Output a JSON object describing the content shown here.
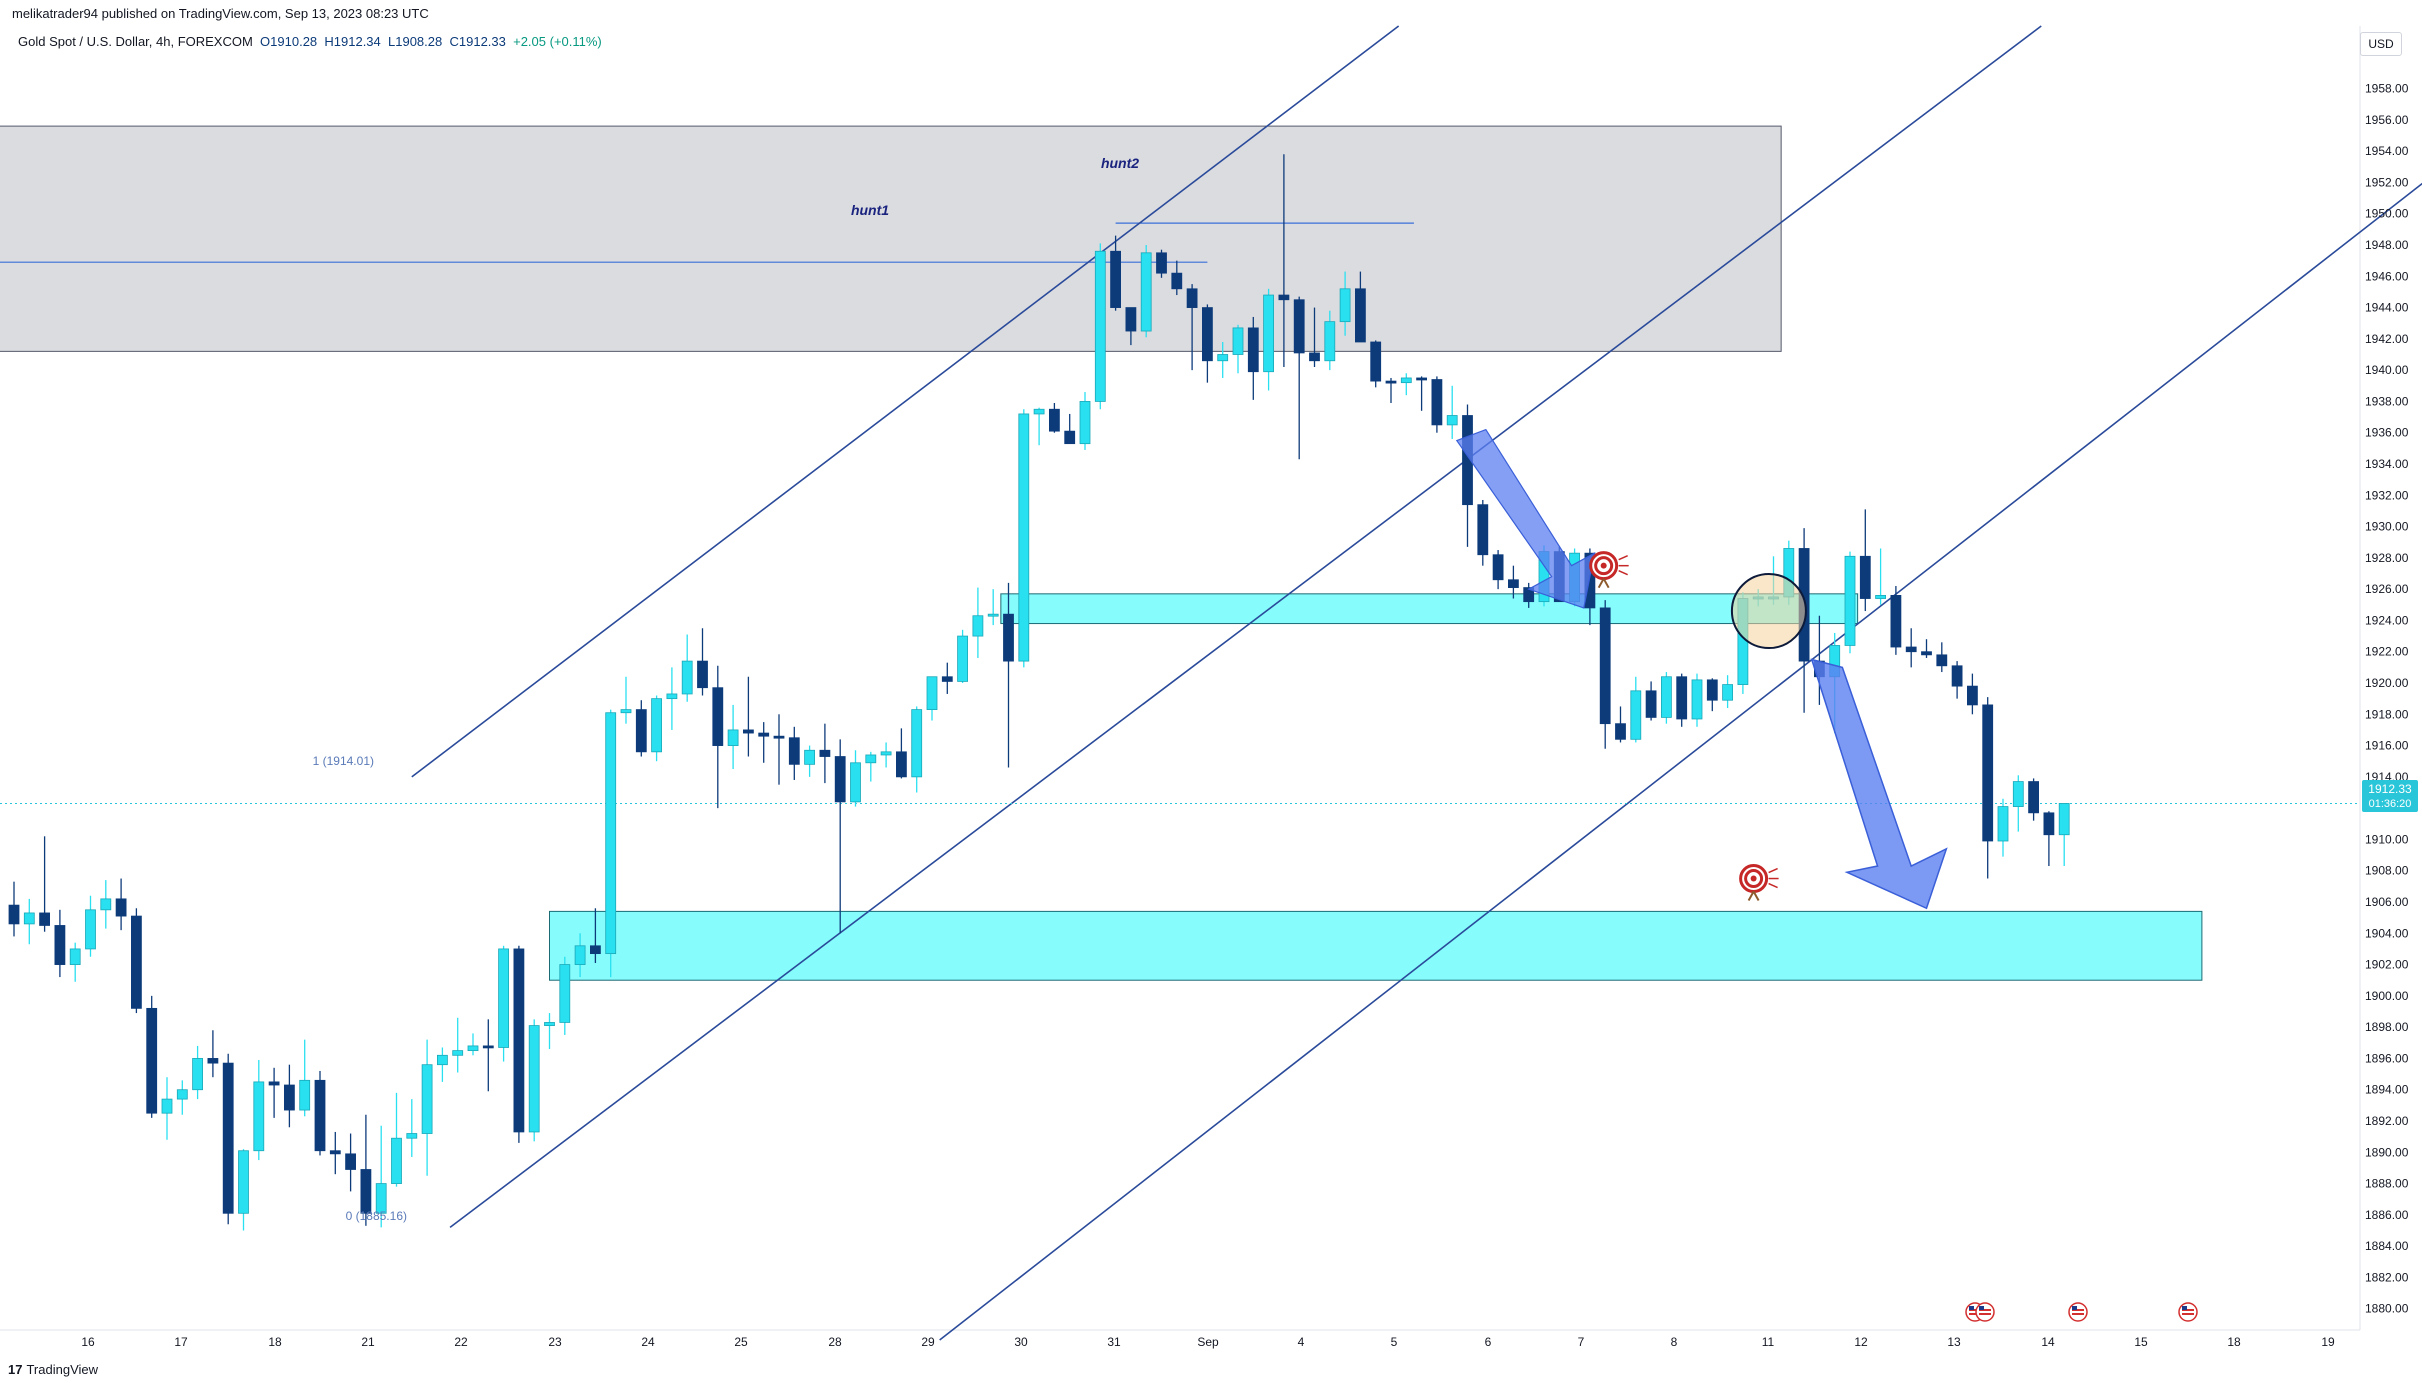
{
  "header": {
    "publish_line": "melikatrader94 published on TradingView.com, Sep 13, 2023 08:23 UTC",
    "symbol_name": "Gold Spot / U.S. Dollar, 4h, FOREXCOM",
    "open": "O1910.28",
    "high": "H1912.34",
    "low": "L1908.28",
    "close": "C1912.33",
    "change": "+2.05 (+0.11%)"
  },
  "currency_button": "USD",
  "footer": {
    "brand": "TradingView",
    "brand_mark": "17"
  },
  "price_tag": {
    "price": "1912.33",
    "countdown": "01:36:20"
  },
  "colors": {
    "bull": "#29e0f0",
    "bear": "#0d3b7a",
    "zone": "#7ffcfc",
    "supply_zone": "#d7d8dd",
    "trendline": "#2a4a9a",
    "arrow": "#5b7ff0"
  },
  "annotations": {
    "hunt1": "hunt1",
    "hunt2": "hunt2",
    "fib_top": "1 (1914.01)",
    "fib_bottom": "0 (1885.16)"
  },
  "chart_data": {
    "type": "candlestick",
    "title": "Gold Spot / U.S. Dollar, 4h, FOREXCOM",
    "ylim": [
      1878,
      1962
    ],
    "y_ticks": [
      "1958.00",
      "1956.00",
      "1954.00",
      "1952.00",
      "1950.00",
      "1948.00",
      "1946.00",
      "1944.00",
      "1942.00",
      "1940.00",
      "1938.00",
      "1936.00",
      "1934.00",
      "1932.00",
      "1930.00",
      "1928.00",
      "1926.00",
      "1924.00",
      "1922.00",
      "1920.00",
      "1918.00",
      "1916.00",
      "1914.00",
      "1912.00",
      "1910.00",
      "1908.00",
      "1906.00",
      "1904.00",
      "1902.00",
      "1900.00",
      "1898.00",
      "1896.00",
      "1894.00",
      "1892.00",
      "1890.00",
      "1888.00",
      "1886.00",
      "1884.00",
      "1882.00",
      "1880.00"
    ],
    "x_ticks": [
      "16",
      "17",
      "18",
      "21",
      "22",
      "23",
      "24",
      "25",
      "28",
      "29",
      "30",
      "31",
      "Sep",
      "4",
      "5",
      "6",
      "7",
      "8",
      "11",
      "12",
      "13",
      "14",
      "15",
      "18",
      "19"
    ],
    "candles": [
      {
        "o": 1905.8,
        "h": 1907.3,
        "l": 1903.8,
        "c": 1904.6
      },
      {
        "o": 1904.6,
        "h": 1906.2,
        "l": 1903.3,
        "c": 1905.3
      },
      {
        "o": 1905.3,
        "h": 1910.2,
        "l": 1904.1,
        "c": 1904.5
      },
      {
        "o": 1904.5,
        "h": 1905.5,
        "l": 1901.2,
        "c": 1902.0
      },
      {
        "o": 1902.0,
        "h": 1903.4,
        "l": 1900.9,
        "c": 1903.0
      },
      {
        "o": 1903.0,
        "h": 1906.4,
        "l": 1902.5,
        "c": 1905.5
      },
      {
        "o": 1905.5,
        "h": 1907.4,
        "l": 1904.3,
        "c": 1906.2
      },
      {
        "o": 1906.2,
        "h": 1907.5,
        "l": 1904.2,
        "c": 1905.1
      },
      {
        "o": 1905.1,
        "h": 1905.6,
        "l": 1898.9,
        "c": 1899.2
      },
      {
        "o": 1899.2,
        "h": 1900.0,
        "l": 1892.2,
        "c": 1892.5
      },
      {
        "o": 1892.5,
        "h": 1894.8,
        "l": 1890.8,
        "c": 1893.4
      },
      {
        "o": 1893.4,
        "h": 1894.6,
        "l": 1892.4,
        "c": 1894.0
      },
      {
        "o": 1894.0,
        "h": 1896.8,
        "l": 1893.4,
        "c": 1896.0
      },
      {
        "o": 1896.0,
        "h": 1897.8,
        "l": 1894.8,
        "c": 1895.7
      },
      {
        "o": 1895.7,
        "h": 1896.3,
        "l": 1885.4,
        "c": 1886.1
      },
      {
        "o": 1886.1,
        "h": 1890.2,
        "l": 1885.0,
        "c": 1890.1
      },
      {
        "o": 1890.1,
        "h": 1895.9,
        "l": 1889.5,
        "c": 1894.5
      },
      {
        "o": 1894.5,
        "h": 1895.4,
        "l": 1892.2,
        "c": 1894.3
      },
      {
        "o": 1894.3,
        "h": 1895.6,
        "l": 1891.6,
        "c": 1892.7
      },
      {
        "o": 1892.7,
        "h": 1897.2,
        "l": 1892.3,
        "c": 1894.6
      },
      {
        "o": 1894.6,
        "h": 1895.2,
        "l": 1889.8,
        "c": 1890.1
      },
      {
        "o": 1890.1,
        "h": 1891.3,
        "l": 1888.6,
        "c": 1889.9
      },
      {
        "o": 1889.9,
        "h": 1891.2,
        "l": 1887.5,
        "c": 1888.9
      },
      {
        "o": 1888.9,
        "h": 1892.4,
        "l": 1885.3,
        "c": 1886.1
      },
      {
        "o": 1886.1,
        "h": 1891.7,
        "l": 1885.2,
        "c": 1888.0
      },
      {
        "o": 1888.0,
        "h": 1893.8,
        "l": 1887.8,
        "c": 1890.9
      },
      {
        "o": 1890.9,
        "h": 1893.4,
        "l": 1889.7,
        "c": 1891.2
      },
      {
        "o": 1891.2,
        "h": 1897.2,
        "l": 1888.5,
        "c": 1895.6
      },
      {
        "o": 1895.6,
        "h": 1896.7,
        "l": 1894.5,
        "c": 1896.2
      },
      {
        "o": 1896.2,
        "h": 1898.6,
        "l": 1895.1,
        "c": 1896.5
      },
      {
        "o": 1896.5,
        "h": 1897.6,
        "l": 1896.2,
        "c": 1896.8
      },
      {
        "o": 1896.8,
        "h": 1898.5,
        "l": 1893.9,
        "c": 1896.7
      },
      {
        "o": 1896.7,
        "h": 1903.2,
        "l": 1895.8,
        "c": 1903.0
      },
      {
        "o": 1903.0,
        "h": 1903.2,
        "l": 1890.6,
        "c": 1891.3
      },
      {
        "o": 1891.3,
        "h": 1898.5,
        "l": 1890.7,
        "c": 1898.1
      },
      {
        "o": 1898.1,
        "h": 1898.9,
        "l": 1896.6,
        "c": 1898.3
      },
      {
        "o": 1898.3,
        "h": 1902.5,
        "l": 1897.5,
        "c": 1902.0
      },
      {
        "o": 1902.0,
        "h": 1904.0,
        "l": 1901.2,
        "c": 1903.2
      },
      {
        "o": 1903.2,
        "h": 1905.6,
        "l": 1902.1,
        "c": 1902.7
      },
      {
        "o": 1902.7,
        "h": 1918.3,
        "l": 1901.2,
        "c": 1918.1
      },
      {
        "o": 1918.1,
        "h": 1920.4,
        "l": 1917.4,
        "c": 1918.3
      },
      {
        "o": 1918.3,
        "h": 1918.9,
        "l": 1915.3,
        "c": 1915.6
      },
      {
        "o": 1915.6,
        "h": 1919.2,
        "l": 1915.0,
        "c": 1919.0
      },
      {
        "o": 1919.0,
        "h": 1921.0,
        "l": 1917.0,
        "c": 1919.3
      },
      {
        "o": 1919.3,
        "h": 1923.1,
        "l": 1918.8,
        "c": 1921.4
      },
      {
        "o": 1921.4,
        "h": 1923.5,
        "l": 1919.2,
        "c": 1919.7
      },
      {
        "o": 1919.7,
        "h": 1921.1,
        "l": 1912.0,
        "c": 1916.0
      },
      {
        "o": 1916.0,
        "h": 1918.6,
        "l": 1914.5,
        "c": 1917.0
      },
      {
        "o": 1917.0,
        "h": 1920.4,
        "l": 1915.3,
        "c": 1916.8
      },
      {
        "o": 1916.8,
        "h": 1917.5,
        "l": 1914.9,
        "c": 1916.6
      },
      {
        "o": 1916.6,
        "h": 1918.0,
        "l": 1913.5,
        "c": 1916.5
      },
      {
        "o": 1916.5,
        "h": 1917.2,
        "l": 1913.8,
        "c": 1914.8
      },
      {
        "o": 1914.8,
        "h": 1916.0,
        "l": 1914.0,
        "c": 1915.7
      },
      {
        "o": 1915.7,
        "h": 1917.4,
        "l": 1913.6,
        "c": 1915.3
      },
      {
        "o": 1915.3,
        "h": 1916.4,
        "l": 1904.0,
        "c": 1912.4
      },
      {
        "o": 1912.4,
        "h": 1915.7,
        "l": 1912.1,
        "c": 1914.9
      },
      {
        "o": 1914.9,
        "h": 1915.6,
        "l": 1913.7,
        "c": 1915.4
      },
      {
        "o": 1915.4,
        "h": 1916.2,
        "l": 1914.6,
        "c": 1915.6
      },
      {
        "o": 1915.6,
        "h": 1917.1,
        "l": 1913.9,
        "c": 1914.0
      },
      {
        "o": 1914.0,
        "h": 1918.5,
        "l": 1913.0,
        "c": 1918.3
      },
      {
        "o": 1918.3,
        "h": 1920.1,
        "l": 1917.6,
        "c": 1920.4
      },
      {
        "o": 1920.4,
        "h": 1921.3,
        "l": 1919.3,
        "c": 1920.1
      },
      {
        "o": 1920.1,
        "h": 1923.4,
        "l": 1920.0,
        "c": 1923.0
      },
      {
        "o": 1923.0,
        "h": 1926.1,
        "l": 1921.6,
        "c": 1924.3
      },
      {
        "o": 1924.3,
        "h": 1926.0,
        "l": 1923.7,
        "c": 1924.4
      },
      {
        "o": 1924.4,
        "h": 1926.4,
        "l": 1914.6,
        "c": 1921.4
      },
      {
        "o": 1921.4,
        "h": 1937.5,
        "l": 1921.0,
        "c": 1937.2
      },
      {
        "o": 1937.2,
        "h": 1937.6,
        "l": 1935.2,
        "c": 1937.5
      },
      {
        "o": 1937.5,
        "h": 1937.9,
        "l": 1936.0,
        "c": 1936.1
      },
      {
        "o": 1936.1,
        "h": 1937.2,
        "l": 1935.6,
        "c": 1935.3
      },
      {
        "o": 1935.3,
        "h": 1938.6,
        "l": 1934.9,
        "c": 1938.0
      },
      {
        "o": 1938.0,
        "h": 1948.1,
        "l": 1937.5,
        "c": 1947.6
      },
      {
        "o": 1947.6,
        "h": 1948.6,
        "l": 1943.8,
        "c": 1944.0
      },
      {
        "o": 1944.0,
        "h": 1943.2,
        "l": 1941.6,
        "c": 1942.5
      },
      {
        "o": 1942.5,
        "h": 1948.0,
        "l": 1942.1,
        "c": 1947.5
      },
      {
        "o": 1947.5,
        "h": 1947.7,
        "l": 1945.9,
        "c": 1946.2
      },
      {
        "o": 1946.2,
        "h": 1947.0,
        "l": 1944.8,
        "c": 1945.2
      },
      {
        "o": 1945.2,
        "h": 1945.5,
        "l": 1940.0,
        "c": 1944.0
      },
      {
        "o": 1944.0,
        "h": 1944.2,
        "l": 1939.2,
        "c": 1940.6
      },
      {
        "o": 1940.6,
        "h": 1941.8,
        "l": 1939.5,
        "c": 1941.0
      },
      {
        "o": 1941.0,
        "h": 1942.9,
        "l": 1939.8,
        "c": 1942.7
      },
      {
        "o": 1942.7,
        "h": 1943.4,
        "l": 1938.1,
        "c": 1939.9
      },
      {
        "o": 1939.9,
        "h": 1945.2,
        "l": 1938.7,
        "c": 1944.8
      },
      {
        "o": 1944.8,
        "h": 1953.8,
        "l": 1940.2,
        "c": 1944.5
      },
      {
        "o": 1944.5,
        "h": 1944.7,
        "l": 1934.3,
        "c": 1941.1
      },
      {
        "o": 1941.1,
        "h": 1944.0,
        "l": 1940.2,
        "c": 1940.6
      },
      {
        "o": 1940.6,
        "h": 1943.8,
        "l": 1940.0,
        "c": 1943.1
      },
      {
        "o": 1943.1,
        "h": 1946.3,
        "l": 1942.2,
        "c": 1945.2
      },
      {
        "o": 1945.2,
        "h": 1946.3,
        "l": 1941.9,
        "c": 1941.8
      },
      {
        "o": 1941.8,
        "h": 1941.9,
        "l": 1938.9,
        "c": 1939.3
      },
      {
        "o": 1939.3,
        "h": 1939.5,
        "l": 1937.9,
        "c": 1939.2
      },
      {
        "o": 1939.2,
        "h": 1939.8,
        "l": 1938.4,
        "c": 1939.5
      },
      {
        "o": 1939.5,
        "h": 1939.6,
        "l": 1937.4,
        "c": 1939.4
      },
      {
        "o": 1939.4,
        "h": 1939.6,
        "l": 1936.0,
        "c": 1936.5
      },
      {
        "o": 1936.5,
        "h": 1939.0,
        "l": 1935.6,
        "c": 1937.1
      },
      {
        "o": 1937.1,
        "h": 1937.8,
        "l": 1928.7,
        "c": 1931.4
      },
      {
        "o": 1931.4,
        "h": 1931.7,
        "l": 1927.5,
        "c": 1928.2
      },
      {
        "o": 1928.2,
        "h": 1928.5,
        "l": 1926.0,
        "c": 1926.6
      },
      {
        "o": 1926.6,
        "h": 1927.5,
        "l": 1925.4,
        "c": 1926.1
      },
      {
        "o": 1926.1,
        "h": 1926.4,
        "l": 1924.8,
        "c": 1925.2
      },
      {
        "o": 1925.2,
        "h": 1928.8,
        "l": 1924.9,
        "c": 1928.4
      },
      {
        "o": 1928.4,
        "h": 1928.7,
        "l": 1925.4,
        "c": 1925.2
      },
      {
        "o": 1925.2,
        "h": 1928.6,
        "l": 1924.9,
        "c": 1928.3
      },
      {
        "o": 1928.3,
        "h": 1928.6,
        "l": 1923.7,
        "c": 1924.8
      },
      {
        "o": 1924.8,
        "h": 1925.3,
        "l": 1915.8,
        "c": 1917.4
      },
      {
        "o": 1917.4,
        "h": 1918.5,
        "l": 1916.2,
        "c": 1916.4
      },
      {
        "o": 1916.4,
        "h": 1920.4,
        "l": 1916.2,
        "c": 1919.5
      },
      {
        "o": 1919.5,
        "h": 1920.1,
        "l": 1917.6,
        "c": 1917.8
      },
      {
        "o": 1917.8,
        "h": 1920.7,
        "l": 1917.4,
        "c": 1920.4
      },
      {
        "o": 1920.4,
        "h": 1920.6,
        "l": 1917.2,
        "c": 1917.7
      },
      {
        "o": 1917.7,
        "h": 1920.6,
        "l": 1917.2,
        "c": 1920.2
      },
      {
        "o": 1920.2,
        "h": 1920.3,
        "l": 1918.2,
        "c": 1918.9
      },
      {
        "o": 1918.9,
        "h": 1920.5,
        "l": 1918.4,
        "c": 1919.9
      },
      {
        "o": 1919.9,
        "h": 1925.8,
        "l": 1919.3,
        "c": 1925.4
      },
      {
        "o": 1925.4,
        "h": 1926.0,
        "l": 1924.9,
        "c": 1925.5
      },
      {
        "o": 1925.5,
        "h": 1928.1,
        "l": 1925.0,
        "c": 1925.5
      },
      {
        "o": 1925.5,
        "h": 1929.1,
        "l": 1925.0,
        "c": 1928.6
      },
      {
        "o": 1928.6,
        "h": 1929.9,
        "l": 1918.1,
        "c": 1921.4
      },
      {
        "o": 1921.4,
        "h": 1924.3,
        "l": 1918.6,
        "c": 1920.4
      },
      {
        "o": 1920.4,
        "h": 1923.2,
        "l": 1916.8,
        "c": 1922.4
      },
      {
        "o": 1922.4,
        "h": 1928.4,
        "l": 1921.9,
        "c": 1928.1
      },
      {
        "o": 1928.1,
        "h": 1931.1,
        "l": 1924.6,
        "c": 1925.4
      },
      {
        "o": 1925.4,
        "h": 1928.6,
        "l": 1925.0,
        "c": 1925.6
      },
      {
        "o": 1925.6,
        "h": 1926.2,
        "l": 1921.8,
        "c": 1922.3
      },
      {
        "o": 1922.3,
        "h": 1923.5,
        "l": 1921.0,
        "c": 1922.0
      },
      {
        "o": 1922.0,
        "h": 1922.8,
        "l": 1921.6,
        "c": 1921.8
      },
      {
        "o": 1921.8,
        "h": 1922.6,
        "l": 1920.7,
        "c": 1921.1
      },
      {
        "o": 1921.1,
        "h": 1921.4,
        "l": 1919.0,
        "c": 1919.8
      },
      {
        "o": 1919.8,
        "h": 1920.6,
        "l": 1918.0,
        "c": 1918.6
      },
      {
        "o": 1918.6,
        "h": 1919.1,
        "l": 1907.5,
        "c": 1909.9
      },
      {
        "o": 1909.9,
        "h": 1912.6,
        "l": 1908.9,
        "c": 1912.1
      },
      {
        "o": 1912.1,
        "h": 1914.1,
        "l": 1910.5,
        "c": 1913.7
      },
      {
        "o": 1913.7,
        "h": 1913.9,
        "l": 1911.2,
        "c": 1911.7
      },
      {
        "o": 1911.7,
        "h": 1911.8,
        "l": 1908.3,
        "c": 1910.3
      },
      {
        "o": 1910.3,
        "h": 1912.3,
        "l": 1908.3,
        "c": 1912.3
      }
    ],
    "zones": [
      {
        "name": "supply-zone",
        "from_index": -1.5,
        "to_index": 115.5,
        "y_low": 1941.2,
        "y_high": 1955.6
      },
      {
        "name": "resistance-zone-upper",
        "from_index": 64.5,
        "to_index": 120.5,
        "y_low": 1923.8,
        "y_high": 1925.7
      },
      {
        "name": "demand-zone-lower",
        "from_index": 35.0,
        "to_index": 143.0,
        "y_low": 1901.0,
        "y_high": 1905.4
      }
    ],
    "horizontal_lines": [
      {
        "name": "hunt1-line",
        "from_index": -1.5,
        "to_index": 78.0,
        "y": 1946.9
      },
      {
        "name": "hunt2-line",
        "from_index": 72.0,
        "to_index": 91.5,
        "y": 1949.4
      }
    ],
    "channel_lines": [
      {
        "name": "upper-channel",
        "x1": 26.0,
        "y1": 1914.0,
        "x2": 90.5,
        "y2": 1962.0
      },
      {
        "name": "middle-channel",
        "x1": 28.5,
        "y1": 1885.2,
        "x2": 132.5,
        "y2": 1962.0
      },
      {
        "name": "lower-channel",
        "x1": 60.5,
        "y1": 1878.0,
        "x2": 163.0,
        "y2": 1956.2
      }
    ]
  }
}
